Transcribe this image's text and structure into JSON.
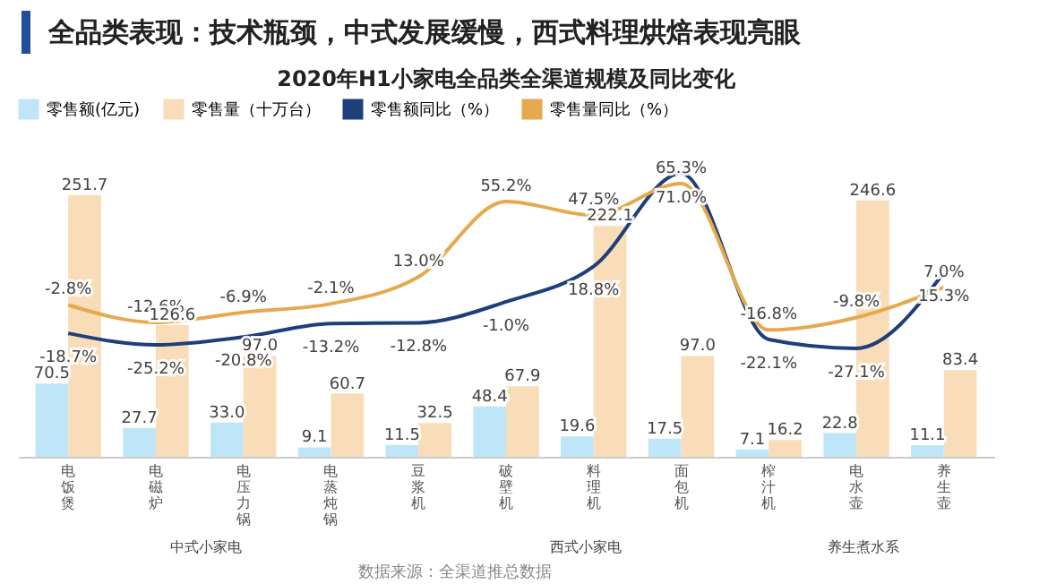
{
  "chart_data": {
    "type": "bar",
    "title": "全品类表现：技术瓶颈，中式发展缓慢，西式料理烘焙表现亮眼",
    "subtitle": "2020年H1小家电全品类全渠道规模及同比变化",
    "categories": [
      "电饭煲",
      "电磁炉",
      "电压力锅",
      "电蒸炖锅",
      "豆浆机",
      "破壁机",
      "料理机",
      "面包机",
      "榨汁机",
      "电水壶",
      "养生壶"
    ],
    "series": [
      {
        "name": "零售额(亿元)",
        "color": "#bfe6f8",
        "values": [
          70.5,
          27.7,
          33.0,
          9.1,
          11.5,
          48.4,
          19.6,
          17.5,
          7.1,
          22.8,
          11.1
        ],
        "value_labels": [
          "70.5",
          "27.7",
          "33.0",
          "9.1",
          "11.5",
          "48.4",
          "19.6",
          "17.5",
          "7.1",
          "22.8",
          "11.1"
        ]
      },
      {
        "name": "零售量（十万台）",
        "color": "#f9dcb8",
        "values": [
          251.7,
          126.6,
          97.0,
          60.7,
          32.5,
          67.9,
          222.1,
          97.0,
          16.2,
          246.6,
          83.4
        ],
        "value_labels": [
          "251.7",
          "126.6",
          "97.0",
          "60.7",
          "32.5",
          "67.9",
          "222.1",
          "97.0",
          "16.2",
          "246.6",
          "83.4"
        ]
      },
      {
        "name": "零售额同比（%）",
        "type": "line",
        "axis": "y2",
        "color": "#1f3f7a",
        "values": [
          -18.7,
          -25.2,
          -20.8,
          -13.2,
          -12.8,
          -1.0,
          18.8,
          71.0,
          -22.1,
          -27.1,
          15.3
        ],
        "value_labels": [
          "-18.7%",
          "-25.2%",
          "-20.8%",
          "-13.2%",
          "-12.8%",
          "-1.0%",
          "18.8%",
          "71.0%",
          "-22.1%",
          "-27.1%",
          "15.3%"
        ]
      },
      {
        "name": "零售量同比（%）",
        "type": "line",
        "axis": "y2",
        "color": "#e6a94e",
        "values": [
          -2.8,
          -12.6,
          -6.9,
          -2.1,
          13.0,
          55.2,
          47.5,
          65.3,
          -16.8,
          -9.8,
          7.0
        ],
        "value_labels": [
          "-2.8%",
          "-12.6%",
          "-6.9%",
          "-2.1%",
          "13.0%",
          "55.2%",
          "47.5%",
          "65.3%",
          "-16.8%",
          "-9.8%",
          "7.0%"
        ]
      }
    ],
    "annotations": [
      "中式小家电",
      "西式小家电",
      "养生煮水系",
      "数据来源：全渠道推总数据"
    ],
    "legend": "top",
    "grid": false
  }
}
